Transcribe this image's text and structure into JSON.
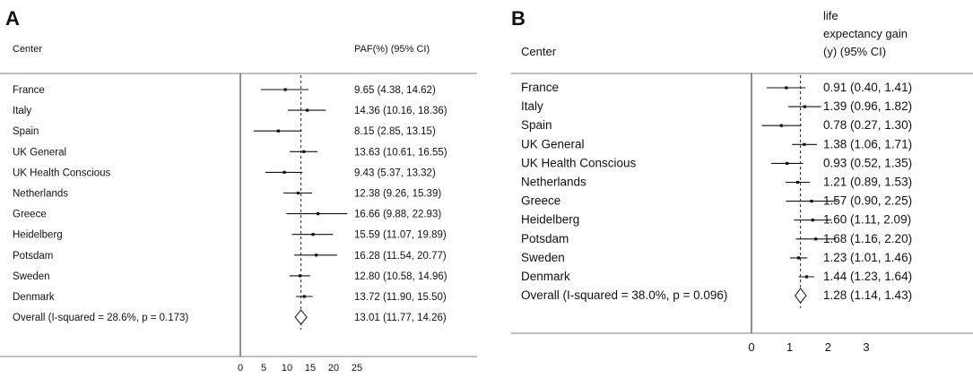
{
  "chart_data": [
    {
      "panel_label": "A",
      "type": "forest",
      "left_header": "Center",
      "right_header": [
        "PAF(%) (95% CI)"
      ],
      "xlim": [
        0,
        25
      ],
      "xticks": [
        "0",
        "5",
        "10",
        "15",
        "20",
        "25"
      ],
      "xtick_values": [
        0,
        5,
        10,
        15,
        20,
        25
      ],
      "reference_line": 13.01,
      "studies": [
        {
          "name": "France",
          "est": 9.65,
          "lo": 4.38,
          "hi": 14.62,
          "label": "9.65 (4.38, 14.62)"
        },
        {
          "name": "Italy",
          "est": 14.36,
          "lo": 10.16,
          "hi": 18.36,
          "label": "14.36 (10.16, 18.36)"
        },
        {
          "name": "Spain",
          "est": 8.15,
          "lo": 2.85,
          "hi": 13.15,
          "label": "8.15 (2.85, 13.15)"
        },
        {
          "name": "UK General",
          "est": 13.63,
          "lo": 10.61,
          "hi": 16.55,
          "label": "13.63 (10.61, 16.55)"
        },
        {
          "name": "UK Health Conscious",
          "est": 9.43,
          "lo": 5.37,
          "hi": 13.32,
          "label": "9.43 (5.37, 13.32)"
        },
        {
          "name": "Netherlands",
          "est": 12.38,
          "lo": 9.26,
          "hi": 15.39,
          "label": "12.38 (9.26, 15.39)"
        },
        {
          "name": "Greece",
          "est": 16.66,
          "lo": 9.88,
          "hi": 22.93,
          "label": "16.66 (9.88, 22.93)"
        },
        {
          "name": "Heidelberg",
          "est": 15.59,
          "lo": 11.07,
          "hi": 19.89,
          "label": "15.59 (11.07, 19.89)"
        },
        {
          "name": "Potsdam",
          "est": 16.28,
          "lo": 11.54,
          "hi": 20.77,
          "label": "16.28 (11.54, 20.77)"
        },
        {
          "name": "Sweden",
          "est": 12.8,
          "lo": 10.58,
          "hi": 14.96,
          "label": "12.80 (10.58, 14.96)"
        },
        {
          "name": "Denmark",
          "est": 13.72,
          "lo": 11.9,
          "hi": 15.5,
          "label": "13.72 (11.90, 15.50)"
        }
      ],
      "overall": {
        "name": "Overall  (I-squared = 28.6%, p = 0.173)",
        "est": 13.01,
        "lo": 11.77,
        "hi": 14.26,
        "label": "13.01 (11.77, 14.26)"
      }
    },
    {
      "panel_label": "B",
      "type": "forest",
      "left_header": "Center",
      "right_header": [
        "life",
        "expectancy gain",
        "(y) (95% CI)"
      ],
      "xlim": [
        0,
        3
      ],
      "xticks": [
        "0",
        "1",
        "2",
        "3"
      ],
      "xtick_values": [
        0,
        1,
        2,
        3
      ],
      "reference_line": 1.28,
      "studies": [
        {
          "name": "France",
          "est": 0.91,
          "lo": 0.4,
          "hi": 1.41,
          "label": "0.91 (0.40, 1.41)"
        },
        {
          "name": "Italy",
          "est": 1.39,
          "lo": 0.96,
          "hi": 1.82,
          "label": "1.39 (0.96, 1.82)"
        },
        {
          "name": "Spain",
          "est": 0.78,
          "lo": 0.27,
          "hi": 1.3,
          "label": "0.78 (0.27, 1.30)"
        },
        {
          "name": "UK General",
          "est": 1.38,
          "lo": 1.06,
          "hi": 1.71,
          "label": "1.38 (1.06, 1.71)"
        },
        {
          "name": "UK Health Conscious",
          "est": 0.93,
          "lo": 0.52,
          "hi": 1.35,
          "label": "0.93 (0.52, 1.35)"
        },
        {
          "name": "Netherlands",
          "est": 1.21,
          "lo": 0.89,
          "hi": 1.53,
          "label": "1.21 (0.89, 1.53)"
        },
        {
          "name": "Greece",
          "est": 1.57,
          "lo": 0.9,
          "hi": 2.25,
          "label": "1.57 (0.90, 2.25)"
        },
        {
          "name": "Heidelberg",
          "est": 1.6,
          "lo": 1.11,
          "hi": 2.09,
          "label": "1.60 (1.11, 2.09)"
        },
        {
          "name": "Potsdam",
          "est": 1.68,
          "lo": 1.16,
          "hi": 2.2,
          "label": "1.68 (1.16, 2.20)"
        },
        {
          "name": "Sweden",
          "est": 1.23,
          "lo": 1.01,
          "hi": 1.46,
          "label": "1.23 (1.01, 1.46)"
        },
        {
          "name": "Denmark",
          "est": 1.44,
          "lo": 1.23,
          "hi": 1.64,
          "label": "1.44 (1.23, 1.64)"
        }
      ],
      "overall": {
        "name": "Overall  (I-squared = 38.0%, p = 0.096)",
        "est": 1.28,
        "lo": 1.14,
        "hi": 1.43,
        "label": "1.28 (1.14, 1.43)"
      }
    }
  ]
}
